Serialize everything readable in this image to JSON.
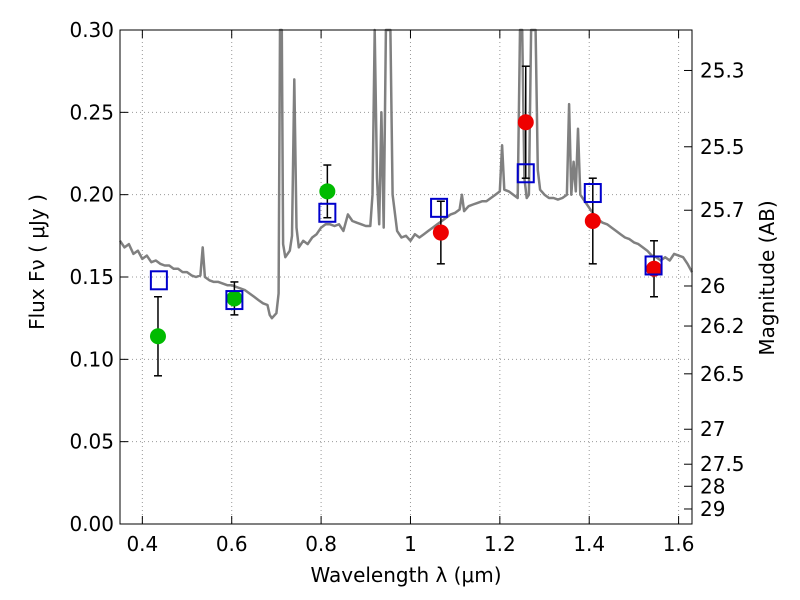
{
  "chart_data": {
    "type": "scatter",
    "xlabel": "Wavelength  λ (μm)",
    "ylabel": "Flux  Fν  ( μJy )",
    "y2label": "Magnitude (AB)",
    "xlim": [
      0.35,
      1.63
    ],
    "ylim": [
      0.0,
      0.3
    ],
    "grid": true,
    "x_ticks": [
      0.4,
      0.6,
      0.8,
      1.0,
      1.2,
      1.4,
      1.6
    ],
    "x_tick_labels": [
      "0.4",
      "0.6",
      "0.8",
      "1",
      "1.2",
      "1.4",
      "1.6"
    ],
    "y_ticks": [
      0.0,
      0.05,
      0.1,
      0.15,
      0.2,
      0.25,
      0.3
    ],
    "y_tick_labels": [
      "0.00",
      "0.05",
      "0.10",
      "0.15",
      "0.20",
      "0.25",
      "0.30"
    ],
    "y2_ticks": [
      {
        "label": "25.3",
        "mag": 25.3
      },
      {
        "label": "25.5",
        "mag": 25.5
      },
      {
        "label": "25.7",
        "mag": 25.7
      },
      {
        "label": "26",
        "mag": 26.0
      },
      {
        "label": "26.2",
        "mag": 26.2
      },
      {
        "label": "26.5",
        "mag": 26.5
      },
      {
        "label": "27",
        "mag": 27.0
      },
      {
        "label": "27.5",
        "mag": 27.5
      },
      {
        "label": "28",
        "mag": 28.0
      },
      {
        "label": "29",
        "mag": 29.0
      }
    ],
    "colors": {
      "sed_line": "#808080",
      "green_points": "#00bb00",
      "red_points": "#ee0000",
      "model_squares": "#0000cc",
      "errorbar": "#000000",
      "grid": "#999999"
    },
    "series": [
      {
        "kind": "model_spectrum",
        "points": [
          [
            0.35,
            0.172
          ],
          [
            0.36,
            0.168
          ],
          [
            0.37,
            0.17
          ],
          [
            0.38,
            0.164
          ],
          [
            0.39,
            0.166
          ],
          [
            0.4,
            0.161
          ],
          [
            0.41,
            0.163
          ],
          [
            0.42,
            0.159
          ],
          [
            0.43,
            0.16
          ],
          [
            0.44,
            0.158
          ],
          [
            0.45,
            0.157
          ],
          [
            0.46,
            0.157
          ],
          [
            0.47,
            0.155
          ],
          [
            0.48,
            0.155
          ],
          [
            0.49,
            0.153
          ],
          [
            0.5,
            0.153
          ],
          [
            0.51,
            0.151
          ],
          [
            0.52,
            0.15
          ],
          [
            0.53,
            0.151
          ],
          [
            0.535,
            0.168
          ],
          [
            0.54,
            0.15
          ],
          [
            0.55,
            0.148
          ],
          [
            0.56,
            0.147
          ],
          [
            0.57,
            0.147
          ],
          [
            0.58,
            0.146
          ],
          [
            0.59,
            0.145
          ],
          [
            0.6,
            0.145
          ],
          [
            0.61,
            0.144
          ],
          [
            0.62,
            0.143
          ],
          [
            0.63,
            0.142
          ],
          [
            0.64,
            0.14
          ],
          [
            0.65,
            0.138
          ],
          [
            0.66,
            0.136
          ],
          [
            0.67,
            0.134
          ],
          [
            0.68,
            0.133
          ],
          [
            0.685,
            0.127
          ],
          [
            0.69,
            0.125
          ],
          [
            0.7,
            0.128
          ],
          [
            0.705,
            0.14
          ],
          [
            0.708,
            0.3
          ],
          [
            0.712,
            0.3
          ],
          [
            0.715,
            0.17
          ],
          [
            0.72,
            0.162
          ],
          [
            0.73,
            0.166
          ],
          [
            0.735,
            0.175
          ],
          [
            0.74,
            0.27
          ],
          [
            0.745,
            0.18
          ],
          [
            0.75,
            0.168
          ],
          [
            0.76,
            0.172
          ],
          [
            0.77,
            0.17
          ],
          [
            0.78,
            0.174
          ],
          [
            0.79,
            0.176
          ],
          [
            0.8,
            0.18
          ],
          [
            0.81,
            0.182
          ],
          [
            0.82,
            0.182
          ],
          [
            0.83,
            0.181
          ],
          [
            0.84,
            0.182
          ],
          [
            0.85,
            0.178
          ],
          [
            0.86,
            0.188
          ],
          [
            0.87,
            0.184
          ],
          [
            0.88,
            0.183
          ],
          [
            0.89,
            0.182
          ],
          [
            0.9,
            0.181
          ],
          [
            0.91,
            0.181
          ],
          [
            0.915,
            0.2
          ],
          [
            0.92,
            0.3
          ],
          [
            0.925,
            0.21
          ],
          [
            0.93,
            0.182
          ],
          [
            0.935,
            0.25
          ],
          [
            0.94,
            0.18
          ],
          [
            0.945,
            0.3
          ],
          [
            0.95,
            0.3
          ],
          [
            0.955,
            0.3
          ],
          [
            0.96,
            0.2
          ],
          [
            0.97,
            0.178
          ],
          [
            0.98,
            0.174
          ],
          [
            0.99,
            0.175
          ],
          [
            1.0,
            0.172
          ],
          [
            1.01,
            0.176
          ],
          [
            1.02,
            0.174
          ],
          [
            1.03,
            0.176
          ],
          [
            1.04,
            0.178
          ],
          [
            1.05,
            0.18
          ],
          [
            1.06,
            0.182
          ],
          [
            1.07,
            0.184
          ],
          [
            1.08,
            0.186
          ],
          [
            1.09,
            0.188
          ],
          [
            1.1,
            0.189
          ],
          [
            1.11,
            0.191
          ],
          [
            1.115,
            0.2
          ],
          [
            1.12,
            0.19
          ],
          [
            1.13,
            0.193
          ],
          [
            1.14,
            0.194
          ],
          [
            1.15,
            0.195
          ],
          [
            1.16,
            0.196
          ],
          [
            1.17,
            0.196
          ],
          [
            1.18,
            0.198
          ],
          [
            1.19,
            0.2
          ],
          [
            1.2,
            0.202
          ],
          [
            1.205,
            0.23
          ],
          [
            1.21,
            0.203
          ],
          [
            1.22,
            0.202
          ],
          [
            1.23,
            0.2
          ],
          [
            1.24,
            0.198
          ],
          [
            1.245,
            0.3
          ],
          [
            1.25,
            0.3
          ],
          [
            1.255,
            0.21
          ],
          [
            1.26,
            0.198
          ],
          [
            1.265,
            0.2
          ],
          [
            1.27,
            0.3
          ],
          [
            1.275,
            0.3
          ],
          [
            1.28,
            0.3
          ],
          [
            1.285,
            0.215
          ],
          [
            1.29,
            0.203
          ],
          [
            1.3,
            0.2
          ],
          [
            1.31,
            0.198
          ],
          [
            1.32,
            0.198
          ],
          [
            1.33,
            0.197
          ],
          [
            1.34,
            0.198
          ],
          [
            1.35,
            0.2
          ],
          [
            1.355,
            0.255
          ],
          [
            1.36,
            0.2
          ],
          [
            1.365,
            0.22
          ],
          [
            1.37,
            0.202
          ],
          [
            1.375,
            0.24
          ],
          [
            1.38,
            0.2
          ],
          [
            1.39,
            0.196
          ],
          [
            1.4,
            0.192
          ],
          [
            1.41,
            0.188
          ],
          [
            1.42,
            0.185
          ],
          [
            1.43,
            0.183
          ],
          [
            1.44,
            0.182
          ],
          [
            1.45,
            0.18
          ],
          [
            1.46,
            0.178
          ],
          [
            1.47,
            0.176
          ],
          [
            1.48,
            0.174
          ],
          [
            1.49,
            0.173
          ],
          [
            1.5,
            0.171
          ],
          [
            1.51,
            0.17
          ],
          [
            1.52,
            0.168
          ],
          [
            1.53,
            0.166
          ],
          [
            1.54,
            0.163
          ],
          [
            1.55,
            0.162
          ],
          [
            1.56,
            0.16
          ],
          [
            1.57,
            0.162
          ],
          [
            1.58,
            0.16
          ],
          [
            1.59,
            0.164
          ],
          [
            1.6,
            0.163
          ],
          [
            1.61,
            0.162
          ],
          [
            1.62,
            0.158
          ],
          [
            1.63,
            0.153
          ]
        ]
      },
      {
        "kind": "observed_green",
        "points": [
          {
            "x": 0.435,
            "y": 0.114,
            "err": 0.024
          },
          {
            "x": 0.606,
            "y": 0.137,
            "err": 0.01
          },
          {
            "x": 0.814,
            "y": 0.202,
            "err": 0.016
          }
        ]
      },
      {
        "kind": "observed_red",
        "points": [
          {
            "x": 1.068,
            "y": 0.177,
            "err": 0.019
          },
          {
            "x": 1.258,
            "y": 0.244,
            "err": 0.034
          },
          {
            "x": 1.408,
            "y": 0.184,
            "err": 0.026
          },
          {
            "x": 1.545,
            "y": 0.155,
            "err": 0.017
          }
        ]
      },
      {
        "kind": "model_photometry",
        "points": [
          {
            "x": 0.437,
            "y": 0.148
          },
          {
            "x": 0.606,
            "y": 0.136
          },
          {
            "x": 0.814,
            "y": 0.189
          },
          {
            "x": 1.064,
            "y": 0.192
          },
          {
            "x": 1.258,
            "y": 0.213
          },
          {
            "x": 1.408,
            "y": 0.201
          },
          {
            "x": 1.544,
            "y": 0.157
          }
        ]
      }
    ]
  }
}
